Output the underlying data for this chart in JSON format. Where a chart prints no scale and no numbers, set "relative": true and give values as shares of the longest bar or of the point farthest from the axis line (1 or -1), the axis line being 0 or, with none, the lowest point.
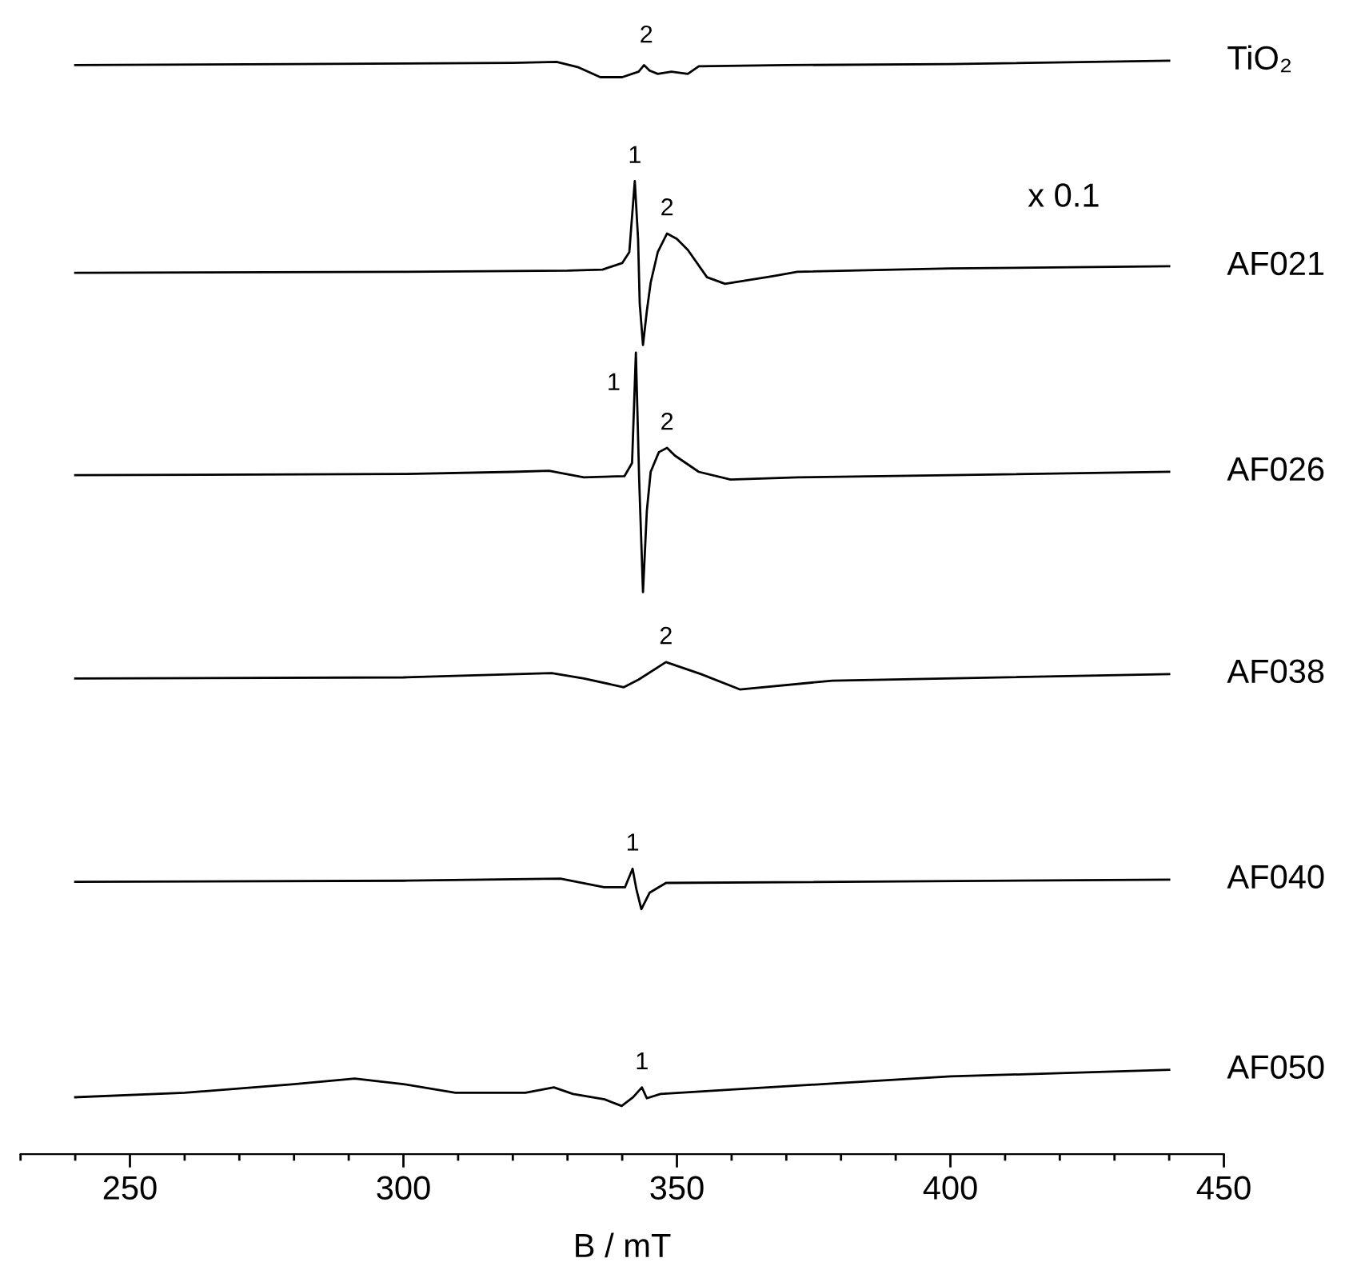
{
  "chart_data": {
    "type": "line",
    "relative": true,
    "xlabel": "B / mT",
    "xlim": [
      230,
      450
    ],
    "xticks": [
      {
        "value": 230,
        "label": null
      },
      {
        "value": 240,
        "label": null
      },
      250,
      {
        "value": 260,
        "label": null
      },
      {
        "value": 270,
        "label": null
      },
      {
        "value": 280,
        "label": null
      },
      {
        "value": 290,
        "label": null
      },
      300,
      {
        "value": 310,
        "label": null
      },
      {
        "value": 320,
        "label": null
      },
      {
        "value": 330,
        "label": null
      },
      {
        "value": 340,
        "label": null
      },
      350,
      {
        "value": 360,
        "label": null
      },
      {
        "value": 370,
        "label": null
      },
      {
        "value": 380,
        "label": null
      },
      {
        "value": 390,
        "label": null
      },
      400,
      {
        "value": 410,
        "label": null
      },
      {
        "value": 420,
        "label": null
      },
      {
        "value": 430,
        "label": null
      },
      {
        "value": 440,
        "label": null
      },
      450
    ],
    "tick_labels": "x",
    "grid": false,
    "legend": false,
    "marker": "none",
    "line_style": "solid",
    "series": [
      {
        "name": "TiO₂",
        "color": "#000000",
        "x": [
          240,
          280,
          320,
          328,
          332,
          336,
          340,
          343,
          344,
          345,
          346.5,
          349,
          352,
          354,
          370,
          400,
          440
        ],
        "values": [
          0.996,
          0.997,
          0.998,
          0.999,
          0.994,
          0.985,
          0.985,
          0.99,
          0.996,
          0.991,
          0.988,
          0.99,
          0.988,
          0.995,
          0.996,
          0.997,
          1.0
        ]
      },
      {
        "name": "AF021",
        "color": "#000000",
        "x": [
          240,
          300,
          330,
          336.4,
          340,
          341.3,
          342.3,
          342.9,
          343.2,
          343.8,
          344.5,
          345.2,
          346.5,
          348.2,
          350,
          352,
          355.5,
          358.8,
          367.5,
          372,
          400,
          440
        ],
        "values": [
          0.806,
          0.807,
          0.808,
          0.809,
          0.815,
          0.825,
          0.89,
          0.837,
          0.778,
          0.74,
          0.771,
          0.797,
          0.825,
          0.842,
          0.837,
          0.827,
          0.802,
          0.796,
          0.803,
          0.807,
          0.81,
          0.812
        ]
      },
      {
        "name": "AF026",
        "color": "#000000",
        "x": [
          240,
          300,
          320,
          326.6,
          333,
          340.4,
          341.8,
          342.5,
          343.1,
          343.8,
          344.5,
          345.2,
          346.7,
          348.2,
          349.6,
          354,
          359.8,
          372,
          400,
          440
        ],
        "values": [
          0.621,
          0.622,
          0.624,
          0.625,
          0.619,
          0.62,
          0.632,
          0.733,
          0.617,
          0.514,
          0.588,
          0.624,
          0.642,
          0.646,
          0.639,
          0.624,
          0.617,
          0.619,
          0.621,
          0.624
        ]
      },
      {
        "name": "AF038",
        "color": "#000000",
        "x": [
          240,
          300,
          327.1,
          333,
          340.3,
          343,
          348,
          354.4,
          361.5,
          378.4,
          440
        ],
        "values": [
          0.435,
          0.436,
          0.44,
          0.435,
          0.427,
          0.434,
          0.45,
          0.439,
          0.425,
          0.433,
          0.439
        ]
      },
      {
        "name": "AF040",
        "color": "#000000",
        "x": [
          240,
          300,
          328.7,
          336.7,
          340.5,
          341.9,
          342.6,
          343.5,
          345,
          348,
          440
        ],
        "values": [
          0.249,
          0.25,
          0.252,
          0.244,
          0.244,
          0.261,
          0.242,
          0.224,
          0.239,
          0.248,
          0.251
        ]
      },
      {
        "name": "AF050",
        "color": "#000000",
        "x": [
          240,
          260,
          280,
          291.1,
          300,
          309.5,
          322.3,
          327.5,
          331,
          336.8,
          339.9,
          342,
          343.6,
          344.5,
          347,
          360,
          380,
          400,
          420,
          440
        ],
        "values": [
          0.052,
          0.056,
          0.064,
          0.069,
          0.064,
          0.056,
          0.056,
          0.061,
          0.055,
          0.05,
          0.044,
          0.052,
          0.061,
          0.051,
          0.055,
          0.059,
          0.065,
          0.071,
          0.074,
          0.077
        ]
      }
    ],
    "annotations": [
      {
        "text": "2",
        "x": 344,
        "y": 0.996
      },
      {
        "text": "1",
        "x": 342.3,
        "y": 0.89
      },
      {
        "text": "2",
        "x": 348.2,
        "y": 0.842
      },
      "x 0.1",
      {
        "text": "1",
        "x": 342.5,
        "y": 0.733
      },
      {
        "text": "2",
        "x": 348.2,
        "y": 0.646
      },
      {
        "text": "2",
        "x": 348,
        "y": 0.45
      },
      {
        "text": "1",
        "x": 341.9,
        "y": 0.261
      },
      {
        "text": "1",
        "x": 343.6,
        "y": 0.061
      }
    ]
  }
}
